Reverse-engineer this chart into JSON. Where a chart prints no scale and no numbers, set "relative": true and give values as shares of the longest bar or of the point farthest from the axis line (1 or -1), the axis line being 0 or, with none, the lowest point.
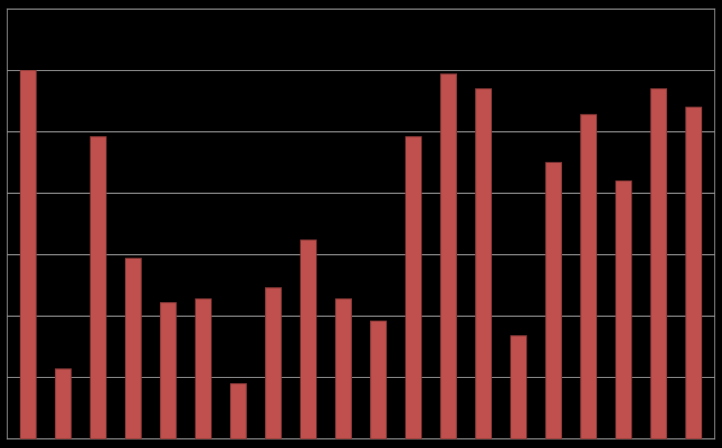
{
  "chart_data": {
    "type": "bar",
    "relative": true,
    "categories": [
      null,
      null,
      null,
      null,
      null,
      null,
      null,
      null,
      null,
      null,
      null,
      null,
      null,
      null,
      null,
      null,
      null,
      null,
      null,
      null
    ],
    "values": [
      1.0,
      0.19,
      0.82,
      0.49,
      0.37,
      0.38,
      0.15,
      0.41,
      0.54,
      0.38,
      0.32,
      0.82,
      0.99,
      0.95,
      0.28,
      0.75,
      0.88,
      0.7,
      0.95,
      0.9
    ],
    "color": "#c0504d",
    "grid": "y",
    "tick_labels": false
  }
}
